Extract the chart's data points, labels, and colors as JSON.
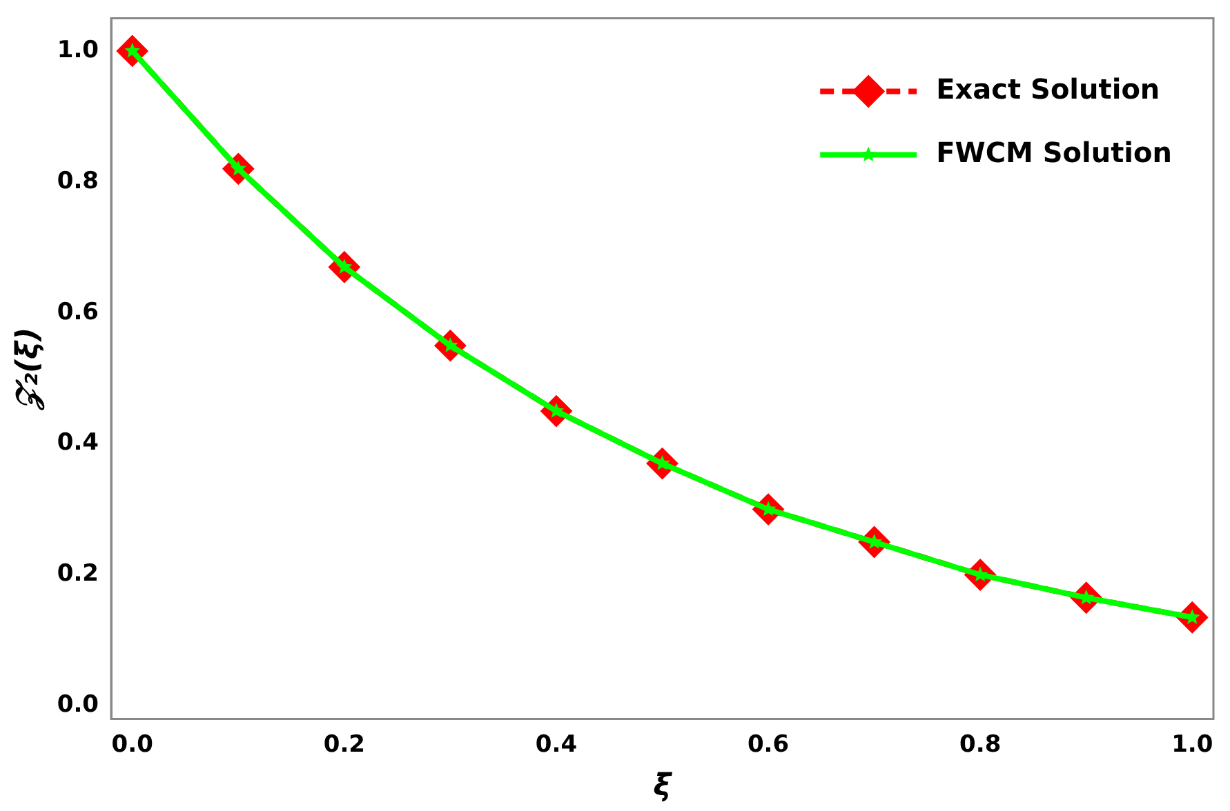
{
  "chart_data": {
    "type": "line",
    "xlabel": "ξ",
    "ylabel": "𝒵₂(ξ)",
    "x": [
      0,
      0.1,
      0.2,
      0.3,
      0.4,
      0.5,
      0.6,
      0.7,
      0.8,
      0.9,
      1.0
    ],
    "series": [
      {
        "name": "Exact Solution",
        "color": "#ff0000",
        "marker": "diamond",
        "line_style": "dashed",
        "values": [
          1.0,
          0.82,
          0.67,
          0.55,
          0.45,
          0.37,
          0.3,
          0.25,
          0.2,
          0.165,
          0.135
        ]
      },
      {
        "name": "FWCM Solution",
        "color": "#00ff00",
        "marker": "star",
        "line_style": "solid",
        "values": [
          1.0,
          0.82,
          0.67,
          0.55,
          0.45,
          0.37,
          0.3,
          0.25,
          0.2,
          0.165,
          0.135
        ]
      }
    ],
    "xlim": [
      -0.02,
      1.02
    ],
    "xticks": [
      {
        "value": 0,
        "label": "0.0"
      },
      {
        "value": 0.2,
        "label": "0.2"
      },
      {
        "value": 0.4,
        "label": "0.4"
      },
      {
        "value": 0.6,
        "label": "0.6"
      },
      {
        "value": 0.8,
        "label": "0.8"
      },
      {
        "value": 1,
        "label": "1.0"
      }
    ],
    "ylim": [
      -0.02,
      1.05
    ],
    "yticks": [
      {
        "value": 0,
        "label": "0.0"
      },
      {
        "value": 0.2,
        "label": "0.2"
      },
      {
        "value": 0.4,
        "label": "0.4"
      },
      {
        "value": 0.6,
        "label": "0.6"
      },
      {
        "value": 0.8,
        "label": "0.8"
      },
      {
        "value": 1,
        "label": "1.0"
      }
    ],
    "grid": false,
    "legend": "top right"
  }
}
